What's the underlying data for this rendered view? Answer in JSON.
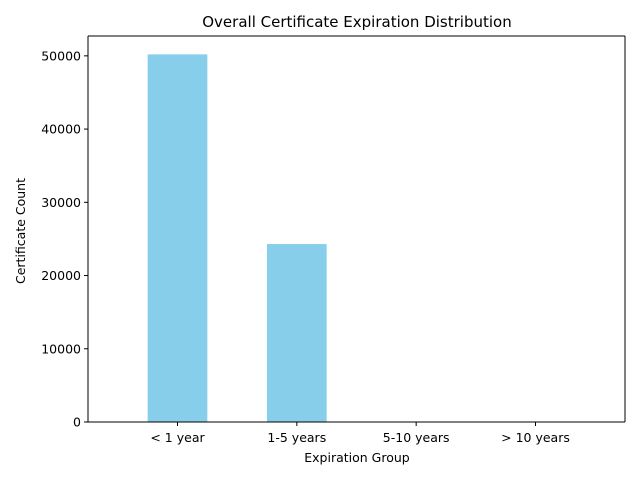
{
  "chart_data": {
    "type": "bar",
    "title": "Overall Certificate Expiration Distribution",
    "xlabel": "Expiration Group",
    "ylabel": "Certificate Count",
    "categories": [
      "< 1 year",
      "1-5 years",
      "5-10 years",
      "> 10 years"
    ],
    "values": [
      50200,
      24300,
      0,
      0
    ],
    "ylim": [
      0,
      52710
    ],
    "yticks": [
      0,
      10000,
      20000,
      30000,
      40000,
      50000
    ],
    "bar_color": "#87CEEB",
    "grid": false,
    "legend": "none"
  }
}
